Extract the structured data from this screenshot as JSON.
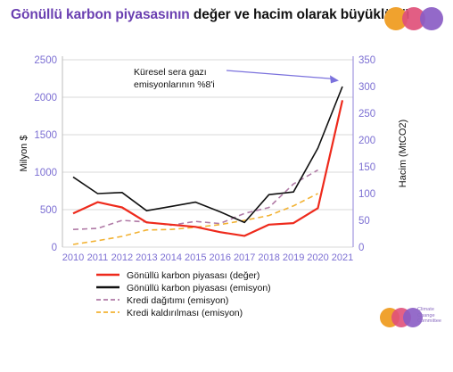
{
  "title": {
    "highlight": "Gönüllü karbon piyasasının",
    "rest": " değer ve hacim olarak büyüklüğü"
  },
  "logo": {
    "text_lines": [
      "Climate",
      "Change",
      "Committee"
    ],
    "colors": [
      "#f0a22e",
      "#e0507a",
      "#8a5cc4"
    ]
  },
  "chart_data": {
    "type": "line",
    "x": [
      2010,
      2011,
      2012,
      2013,
      2014,
      2015,
      2016,
      2017,
      2018,
      2019,
      2020,
      2021
    ],
    "yleft": {
      "label": "Milyon $",
      "lim": [
        0,
        2500
      ],
      "ticks": [
        "0",
        "500",
        "1000",
        "1500",
        "2000",
        "2500"
      ]
    },
    "yright": {
      "label": "Hacim (MtCO2)",
      "lim": [
        0,
        350
      ],
      "ticks": [
        "0",
        "50",
        "100",
        "150",
        "200",
        "250",
        "300",
        "350"
      ]
    },
    "grid": true,
    "series": [
      {
        "name": "Gönüllü karbon piyasası (değer)",
        "axis": "left",
        "color": "#ee2a1c",
        "dash": false,
        "width": 2.2,
        "values": [
          450,
          600,
          530,
          330,
          300,
          270,
          200,
          150,
          300,
          320,
          520,
          1960
        ]
      },
      {
        "name": "Gönüllü karbon piyasası (emisyon)",
        "axis": "right",
        "color": "#111111",
        "dash": false,
        "width": 1.6,
        "values": [
          131,
          100,
          102,
          68,
          76,
          84,
          66,
          46,
          98,
          103,
          185,
          300
        ]
      },
      {
        "name": "Kredi dağıtımı (emisyon)",
        "axis": "right",
        "color": "#b07aa6",
        "dash": true,
        "width": 1.6,
        "values": [
          33,
          35,
          50,
          47,
          41,
          48,
          44,
          63,
          74,
          118,
          144,
          null
        ]
      },
      {
        "name": "Kredi kaldırılması (emisyon)",
        "axis": "right",
        "color": "#f2b233",
        "dash": true,
        "width": 1.6,
        "values": [
          5,
          12,
          20,
          32,
          33,
          37,
          42,
          50,
          59,
          77,
          100,
          null
        ]
      }
    ],
    "annotation": {
      "lines": [
        "Küresel sera gazı",
        "emisyonlarının %8'i"
      ],
      "target": {
        "x": 2021,
        "y": 2150
      }
    },
    "legend": "bottom"
  }
}
